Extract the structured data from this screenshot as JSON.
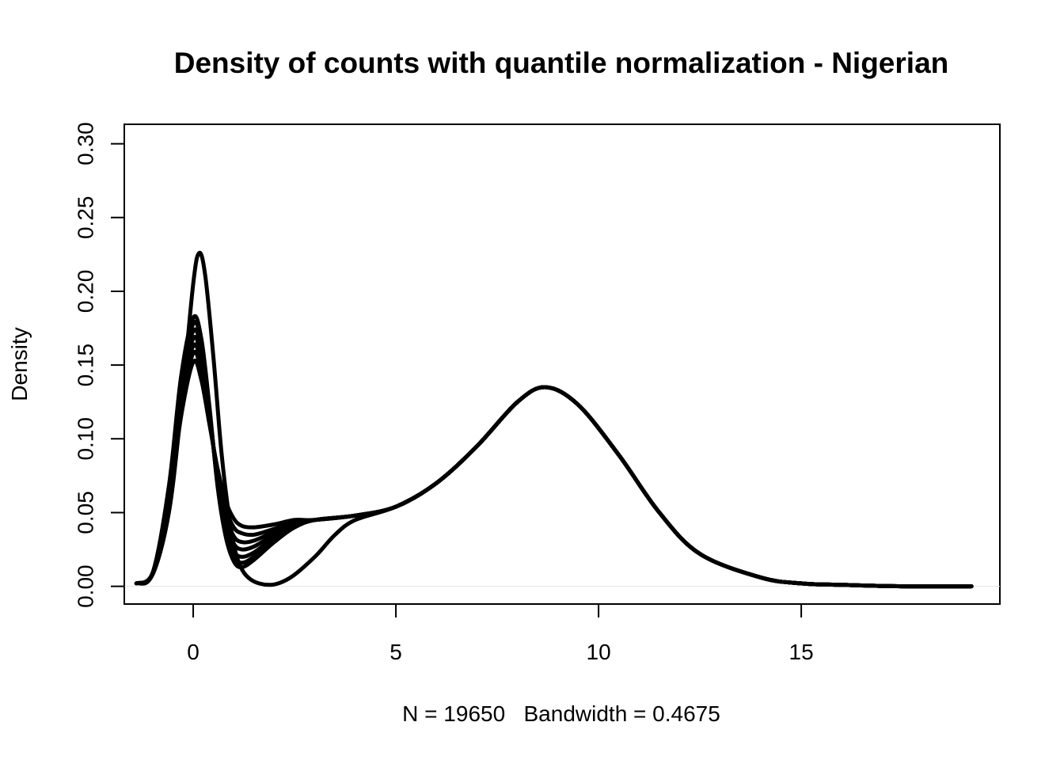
{
  "chart_data": {
    "type": "line",
    "title": "Density of counts with quantile normalization - Nigerian",
    "xlabel": "N = 19650   Bandwidth = 0.4675",
    "ylabel": "Density",
    "xlim": [
      -1.7,
      19.9
    ],
    "ylim": [
      -0.012,
      0.3132
    ],
    "x_ticks": [
      0,
      5,
      10,
      15
    ],
    "x_tick_labels": [
      "0",
      "5",
      "10",
      "15"
    ],
    "y_ticks": [
      0.0,
      0.05,
      0.1,
      0.15,
      0.2,
      0.25,
      0.3
    ],
    "y_tick_labels": [
      "0.00",
      "0.05",
      "0.10",
      "0.15",
      "0.20",
      "0.25",
      "0.30"
    ],
    "grid": false,
    "legend": "none",
    "line_color": "#000000",
    "series": [
      {
        "x": [
          -1.4,
          -1.0,
          -0.6,
          -0.3,
          0.0,
          0.2,
          0.4,
          0.6,
          0.8,
          1.0,
          1.2,
          1.5,
          2.0,
          2.5,
          3.0,
          4.0,
          5.0,
          6.0,
          7.0,
          8.0,
          8.7,
          9.5,
          10.5,
          11.5,
          12.5,
          14.0,
          15.0,
          16.0,
          17.5,
          19.2
        ],
        "y": [
          0.002,
          0.009,
          0.055,
          0.115,
          0.152,
          0.14,
          0.11,
          0.08,
          0.058,
          0.046,
          0.041,
          0.04,
          0.042,
          0.045,
          0.045,
          0.048,
          0.054,
          0.07,
          0.095,
          0.125,
          0.135,
          0.123,
          0.089,
          0.05,
          0.022,
          0.006,
          0.002,
          0.001,
          0.0,
          0.0
        ]
      },
      {
        "x": [
          -1.4,
          -1.0,
          -0.6,
          -0.3,
          0.0,
          0.2,
          0.4,
          0.6,
          0.8,
          1.0,
          1.2,
          1.5,
          2.0,
          2.5,
          3.0,
          4.0,
          5.0,
          6.0,
          7.0,
          8.0,
          8.7,
          9.5,
          10.5,
          11.5,
          12.5,
          14.0,
          15.0,
          16.0,
          17.5,
          19.2
        ],
        "y": [
          0.002,
          0.009,
          0.058,
          0.12,
          0.158,
          0.145,
          0.112,
          0.078,
          0.053,
          0.04,
          0.036,
          0.035,
          0.039,
          0.044,
          0.045,
          0.048,
          0.054,
          0.07,
          0.095,
          0.125,
          0.135,
          0.123,
          0.089,
          0.05,
          0.022,
          0.006,
          0.002,
          0.001,
          0.0,
          0.0
        ]
      },
      {
        "x": [
          -1.4,
          -1.0,
          -0.6,
          -0.3,
          0.0,
          0.2,
          0.4,
          0.6,
          0.8,
          1.0,
          1.2,
          1.5,
          2.0,
          2.5,
          3.0,
          4.0,
          5.0,
          6.0,
          7.0,
          8.0,
          8.7,
          9.5,
          10.5,
          11.5,
          12.5,
          14.0,
          15.0,
          16.0,
          17.5,
          19.2
        ],
        "y": [
          0.002,
          0.009,
          0.06,
          0.125,
          0.163,
          0.15,
          0.114,
          0.076,
          0.048,
          0.034,
          0.03,
          0.031,
          0.037,
          0.043,
          0.045,
          0.048,
          0.054,
          0.07,
          0.095,
          0.125,
          0.135,
          0.123,
          0.089,
          0.05,
          0.022,
          0.006,
          0.002,
          0.001,
          0.0,
          0.0
        ]
      },
      {
        "x": [
          -1.4,
          -1.0,
          -0.6,
          -0.3,
          0.0,
          0.2,
          0.4,
          0.6,
          0.8,
          1.0,
          1.2,
          1.5,
          2.0,
          2.5,
          3.0,
          4.0,
          5.0,
          6.0,
          7.0,
          8.0,
          8.7,
          9.5,
          10.5,
          11.5,
          12.5,
          14.0,
          15.0,
          16.0,
          17.5,
          19.2
        ],
        "y": [
          0.002,
          0.009,
          0.062,
          0.13,
          0.168,
          0.155,
          0.116,
          0.074,
          0.044,
          0.029,
          0.025,
          0.027,
          0.035,
          0.042,
          0.045,
          0.048,
          0.054,
          0.07,
          0.095,
          0.125,
          0.135,
          0.123,
          0.089,
          0.05,
          0.022,
          0.006,
          0.002,
          0.001,
          0.0,
          0.0
        ]
      },
      {
        "x": [
          -1.4,
          -1.0,
          -0.6,
          -0.3,
          0.0,
          0.2,
          0.4,
          0.6,
          0.8,
          1.0,
          1.2,
          1.5,
          2.0,
          2.5,
          3.0,
          4.0,
          5.0,
          6.0,
          7.0,
          8.0,
          8.7,
          9.5,
          10.5,
          11.5,
          12.5,
          14.0,
          15.0,
          16.0,
          17.5,
          19.2
        ],
        "y": [
          0.002,
          0.009,
          0.064,
          0.134,
          0.173,
          0.16,
          0.118,
          0.072,
          0.04,
          0.024,
          0.02,
          0.023,
          0.033,
          0.041,
          0.045,
          0.048,
          0.054,
          0.07,
          0.095,
          0.125,
          0.135,
          0.123,
          0.089,
          0.05,
          0.022,
          0.006,
          0.002,
          0.001,
          0.0,
          0.0
        ]
      },
      {
        "x": [
          -1.4,
          -1.0,
          -0.6,
          -0.3,
          0.0,
          0.2,
          0.4,
          0.6,
          0.8,
          1.0,
          1.2,
          1.5,
          2.0,
          2.5,
          3.0,
          4.0,
          5.0,
          6.0,
          7.0,
          8.0,
          8.7,
          9.5,
          10.5,
          11.5,
          12.5,
          14.0,
          15.0,
          16.0,
          17.5,
          19.2
        ],
        "y": [
          0.002,
          0.009,
          0.066,
          0.138,
          0.178,
          0.165,
          0.12,
          0.07,
          0.037,
          0.02,
          0.016,
          0.02,
          0.031,
          0.04,
          0.045,
          0.048,
          0.054,
          0.07,
          0.095,
          0.125,
          0.135,
          0.123,
          0.089,
          0.05,
          0.022,
          0.006,
          0.002,
          0.001,
          0.0,
          0.0
        ]
      },
      {
        "x": [
          -1.4,
          -1.0,
          -0.6,
          -0.3,
          0.0,
          0.2,
          0.4,
          0.6,
          0.8,
          1.0,
          1.2,
          1.5,
          2.0,
          2.5,
          3.0,
          4.0,
          5.0,
          6.0,
          7.0,
          8.0,
          8.7,
          9.5,
          10.5,
          11.5,
          12.5,
          14.0,
          15.0,
          16.0,
          17.5,
          19.2
        ],
        "y": [
          0.002,
          0.009,
          0.068,
          0.142,
          0.182,
          0.168,
          0.122,
          0.068,
          0.034,
          0.017,
          0.013,
          0.018,
          0.03,
          0.04,
          0.045,
          0.048,
          0.054,
          0.07,
          0.095,
          0.125,
          0.135,
          0.123,
          0.089,
          0.05,
          0.022,
          0.006,
          0.002,
          0.001,
          0.0,
          0.0
        ]
      },
      {
        "x": [
          -1.4,
          -1.0,
          -0.6,
          -0.3,
          0.0,
          0.15,
          0.3,
          0.5,
          0.7,
          0.9,
          1.1,
          1.4,
          1.9,
          2.4,
          3.0,
          3.5,
          4.0,
          5.0,
          6.0,
          7.0,
          8.0,
          8.7,
          9.5,
          10.5,
          11.5,
          12.5,
          14.0,
          15.0,
          16.0,
          17.5,
          19.2
        ],
        "y": [
          0.002,
          0.008,
          0.05,
          0.12,
          0.205,
          0.226,
          0.21,
          0.155,
          0.09,
          0.045,
          0.018,
          0.005,
          0.001,
          0.006,
          0.02,
          0.035,
          0.045,
          0.054,
          0.07,
          0.095,
          0.125,
          0.135,
          0.123,
          0.089,
          0.05,
          0.022,
          0.006,
          0.002,
          0.001,
          0.0,
          0.0
        ]
      }
    ]
  }
}
